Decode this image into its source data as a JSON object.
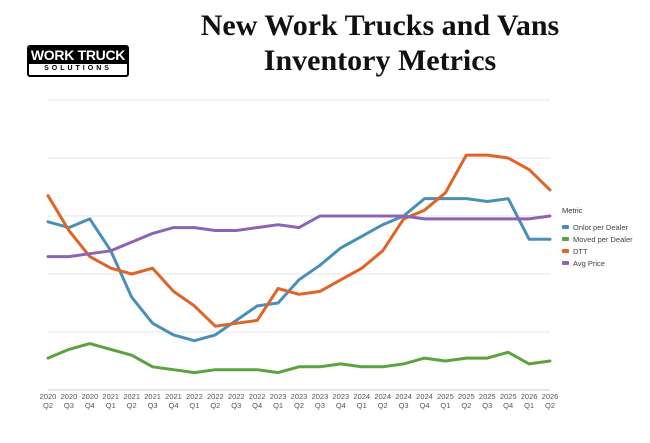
{
  "header": {
    "title_line1": "New Work Trucks and Vans",
    "title_line2": "Inventory Metrics"
  },
  "logo": {
    "line1": "WORK TRUCK",
    "line2": "SOLUTIONS"
  },
  "chart_data": {
    "type": "line",
    "title": "New Work Trucks and Vans Inventory Metrics",
    "xlabel": "",
    "ylabel": "",
    "ylim": [
      0,
      100
    ],
    "grid": true,
    "legend_position": "right",
    "legend_title": "Metric",
    "categories": [
      "2020 Q2",
      "2020 Q3",
      "2020 Q4",
      "2021 Q1",
      "2021 Q2",
      "2021 Q3",
      "2021 Q4",
      "2022 Q1",
      "2022 Q2",
      "2022 Q3",
      "2022 Q4",
      "2023 Q1",
      "2023 Q2",
      "2023 Q3",
      "2023 Q4",
      "2024 Q1",
      "2024 Q2",
      "2024 Q3",
      "2024 Q4",
      "2025 Q1",
      "2025 Q2",
      "2025 Q3",
      "2025 Q4",
      "2026 Q1",
      "2026 Q2"
    ],
    "series": [
      {
        "name": "Onlot per Dealer",
        "color": "#4a8fb8",
        "values": [
          58,
          56,
          59,
          48,
          32,
          23,
          19,
          17,
          19,
          24,
          29,
          30,
          38,
          43,
          49,
          53,
          57,
          60,
          66,
          66,
          66,
          65,
          66,
          52,
          52
        ]
      },
      {
        "name": "Moved per Dealer",
        "color": "#5aa33f",
        "values": [
          11,
          14,
          16,
          14,
          12,
          8,
          7,
          6,
          7,
          7,
          7,
          6,
          8,
          8,
          9,
          8,
          8,
          9,
          11,
          10,
          11,
          11,
          13,
          9,
          10
        ]
      },
      {
        "name": "DTT",
        "color": "#e06328",
        "values": [
          67,
          55,
          46,
          42,
          40,
          42,
          34,
          29,
          22,
          23,
          24,
          35,
          33,
          34,
          38,
          42,
          48,
          59,
          62,
          68,
          81,
          81,
          80,
          76,
          69
        ]
      },
      {
        "name": "Avg Price",
        "color": "#8c64b4",
        "values": [
          46,
          46,
          47,
          48,
          51,
          54,
          56,
          56,
          55,
          55,
          56,
          57,
          56,
          60,
          60,
          60,
          60,
          60,
          59,
          59,
          59,
          59,
          59,
          59,
          60
        ]
      }
    ]
  }
}
